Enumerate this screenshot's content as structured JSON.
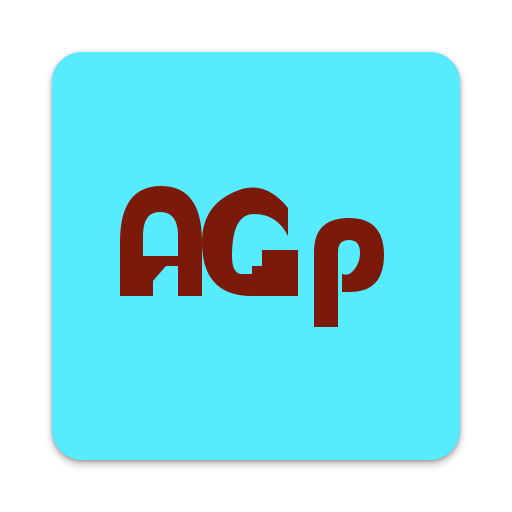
{
  "icon": {
    "logo_text": "AGp",
    "background_color": "#57ECFD",
    "letter_color": "#7B1A0A"
  }
}
